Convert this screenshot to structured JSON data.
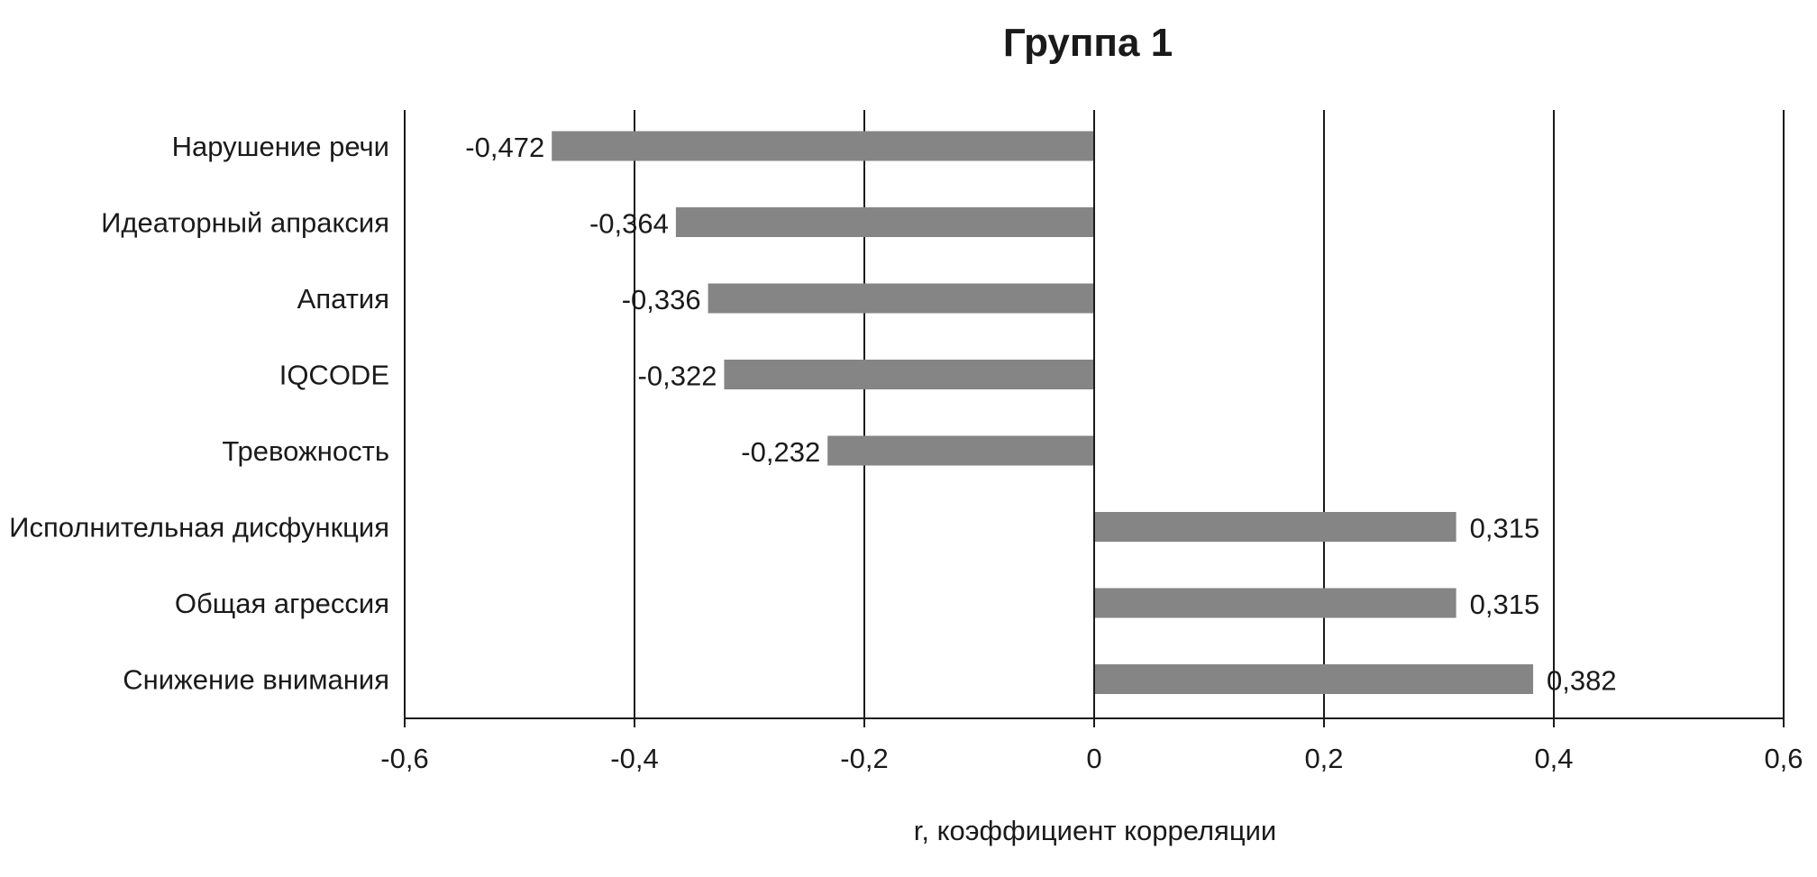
{
  "chart_data": {
    "type": "bar",
    "orientation": "horizontal",
    "title": "Группа 1",
    "xlabel": "r, коэффициент корреляции",
    "ylabel": "",
    "categories": [
      "Нарушение речи",
      "Идеаторный апраксия",
      "Апатия",
      "IQCODE",
      "Тревожность",
      "Исполнительная дисфункция",
      "Общая агрессия",
      "Снижение внимания"
    ],
    "values": [
      -0.472,
      -0.364,
      -0.336,
      -0.322,
      -0.232,
      0.315,
      0.315,
      0.382
    ],
    "value_labels": [
      "-0,472",
      "-0,364",
      "-0,336",
      "-0,322",
      "-0,232",
      "0,315",
      "0,315",
      "0,382"
    ],
    "xlim": [
      -0.6,
      0.6
    ],
    "x_ticks": [
      -0.6,
      -0.4,
      -0.2,
      0,
      0.2,
      0.4,
      0.6
    ],
    "x_tick_labels": [
      "-0,6",
      "-0,4",
      "-0,2",
      "0",
      "0,2",
      "0,4",
      "0,6"
    ],
    "grid": "vertical",
    "legend": "none",
    "colors": {
      "bar": "#858585",
      "grid": "#1a1a1a",
      "text": "#1a1a1a"
    }
  }
}
